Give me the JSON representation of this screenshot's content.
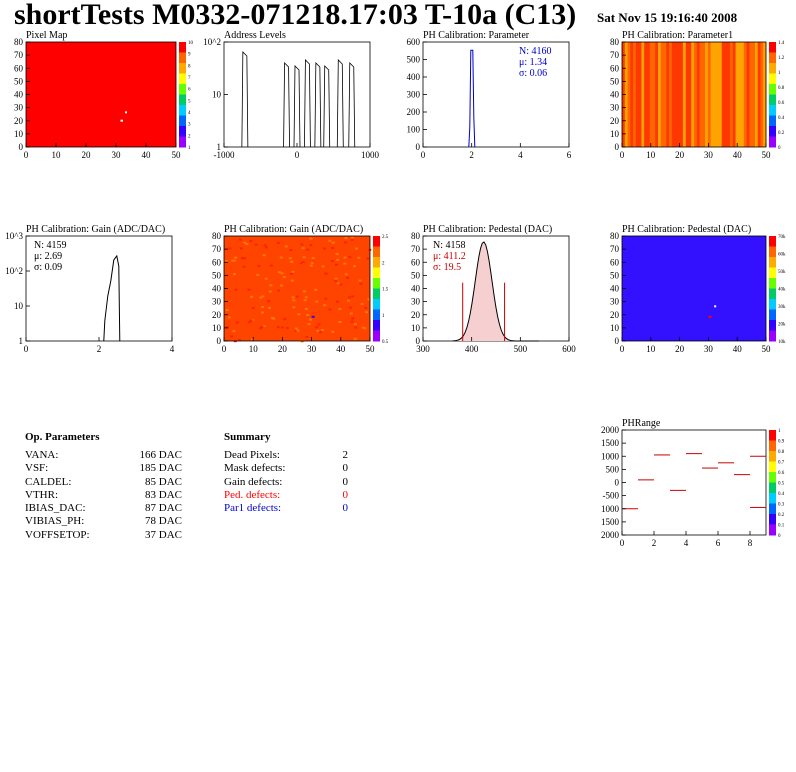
{
  "header": {
    "title": "shortTests M0332-071218.17:03 T-10a (C13)",
    "timestamp": "Sat Nov 15 19:16:40 2008"
  },
  "panels": [
    {
      "title": "Pixel Map",
      "type": "heatmap",
      "xticks": [
        "0",
        "10",
        "20",
        "30",
        "40",
        "50"
      ],
      "yticks": [
        "0",
        "10",
        "20",
        "30",
        "40",
        "50",
        "60",
        "70",
        "80"
      ],
      "colorbar_ticks": [
        "10",
        "9",
        "8",
        "7",
        "6",
        "5",
        "4",
        "3",
        "2",
        "1"
      ],
      "base_color": "#ff0000",
      "palette": "rainbow"
    },
    {
      "title": "Address Levels",
      "type": "bar",
      "xticks": [
        "-1000",
        "0",
        "1000"
      ],
      "yticks": [
        "1",
        "10",
        "10^2"
      ],
      "log_y": true,
      "peaks_x": [
        -1000,
        -200,
        0,
        200,
        400,
        570,
        830,
        1050
      ]
    },
    {
      "title": "PH Calibration: Parameter",
      "type": "bar",
      "xticks": [
        "0",
        "2",
        "4",
        "6"
      ],
      "yticks": [
        "0",
        "100",
        "200",
        "300",
        "400",
        "500",
        "600"
      ],
      "stats": {
        "n": "N: 4160",
        "mu": "μ: 1.34",
        "sigma": "σ: 0.06"
      },
      "stat_color": "#0000cc",
      "mean": 1.34,
      "peak": 570,
      "line_color": "#0000cc"
    },
    {
      "title": "PH Calibration: Parameter1",
      "type": "heatmap",
      "xticks": [
        "0",
        "10",
        "20",
        "30",
        "40",
        "50"
      ],
      "yticks": [
        "0",
        "10",
        "20",
        "30",
        "40",
        "50",
        "60",
        "70",
        "80"
      ],
      "colorbar_ticks": [
        "1.4",
        "1.2",
        "1",
        "0.8",
        "0.6",
        "0.4",
        "0.2",
        "0"
      ],
      "base_color": "#ff6600",
      "palette": "rainbow"
    },
    {
      "title": "PH Calibration: Gain (ADC/DAC)",
      "type": "bar",
      "xticks": [
        "0",
        "2",
        "4"
      ],
      "yticks": [
        "1",
        "10",
        "10^2",
        "10^3"
      ],
      "log_y": true,
      "stats": {
        "n": "N: 4159",
        "mu": "μ: 2.69",
        "sigma": "σ: 0.09"
      },
      "stat_color": "#000000",
      "mean": 2.69,
      "line_color": "#000000"
    },
    {
      "title": "PH Calibration: Gain (ADC/DAC)",
      "type": "heatmap",
      "xticks": [
        "0",
        "10",
        "20",
        "30",
        "40",
        "50"
      ],
      "yticks": [
        "0",
        "10",
        "20",
        "30",
        "40",
        "50",
        "60",
        "70",
        "80"
      ],
      "colorbar_ticks": [
        "2.5",
        "2",
        "1.5",
        "1",
        "0.5"
      ],
      "base_color": "#ff4400",
      "palette": "rainbow"
    },
    {
      "title": "PH Calibration: Pedestal (DAC)",
      "type": "bar",
      "xticks": [
        "300",
        "400",
        "500",
        "600"
      ],
      "yticks": [
        "0",
        "10",
        "20",
        "30",
        "40",
        "50",
        "60",
        "70",
        "80"
      ],
      "stats": {
        "n": "N: 4158",
        "mu": "μ: 411.2",
        "sigma": "σ: 19.5"
      },
      "stat_color": "#cc0000",
      "mean": 411.2,
      "peak": 85,
      "line_color": "#000000"
    },
    {
      "title": "PH Calibration: Pedestal (DAC)",
      "type": "heatmap",
      "xticks": [
        "0",
        "10",
        "20",
        "30",
        "40",
        "50"
      ],
      "yticks": [
        "0",
        "10",
        "20",
        "30",
        "40",
        "50",
        "60",
        "70",
        "80"
      ],
      "colorbar_ticks": [
        "70k",
        "60k",
        "50k",
        "40k",
        "30k",
        "20k",
        "10k"
      ],
      "base_color": "#3311ff",
      "palette": "rainbow"
    },
    {
      "title": "PHRange",
      "type": "scatter",
      "xticks": [
        "0",
        "2",
        "4",
        "6",
        "8"
      ],
      "yticks": [
        "2000",
        "1500",
        "1000",
        "500",
        "0",
        "-500",
        "1000",
        "1500",
        "2000"
      ],
      "colorbar_ticks": [
        "1",
        "0.9",
        "0.8",
        "0.7",
        "0.6",
        "0.5",
        "0.4",
        "0.3",
        "0.2",
        "0.1",
        "0"
      ],
      "points": [
        [
          0.5,
          -1000
        ],
        [
          1.5,
          100
        ],
        [
          2.5,
          1050
        ],
        [
          3.5,
          -300
        ],
        [
          4.5,
          1100
        ],
        [
          5.5,
          550
        ],
        [
          6.5,
          750
        ],
        [
          7.5,
          300
        ],
        [
          8.5,
          1000
        ],
        [
          8.5,
          -950
        ]
      ]
    }
  ],
  "op_parameters": {
    "title": "Op. Parameters",
    "rows": [
      {
        "name": "VANA:",
        "value": "166 DAC"
      },
      {
        "name": "VSF:",
        "value": "185 DAC"
      },
      {
        "name": "CALDEL:",
        "value": "85 DAC"
      },
      {
        "name": "VTHR:",
        "value": "83 DAC"
      },
      {
        "name": "IBIAS_DAC:",
        "value": "87 DAC"
      },
      {
        "name": "VIBIAS_PH:",
        "value": "78 DAC"
      },
      {
        "name": "VOFFSETOP:",
        "value": "37 DAC"
      }
    ]
  },
  "summary": {
    "title": "Summary",
    "rows": [
      {
        "name": "Dead Pixels:",
        "value": "2",
        "color": "#000000"
      },
      {
        "name": "Mask defects:",
        "value": "0",
        "color": "#000000"
      },
      {
        "name": "Gain defects:",
        "value": "0",
        "color": "#000000"
      },
      {
        "name": "Ped. defects:",
        "value": "0",
        "color": "#ff0000"
      },
      {
        "name": "Par1 defects:",
        "value": "0",
        "color": "#0000cc"
      }
    ]
  }
}
